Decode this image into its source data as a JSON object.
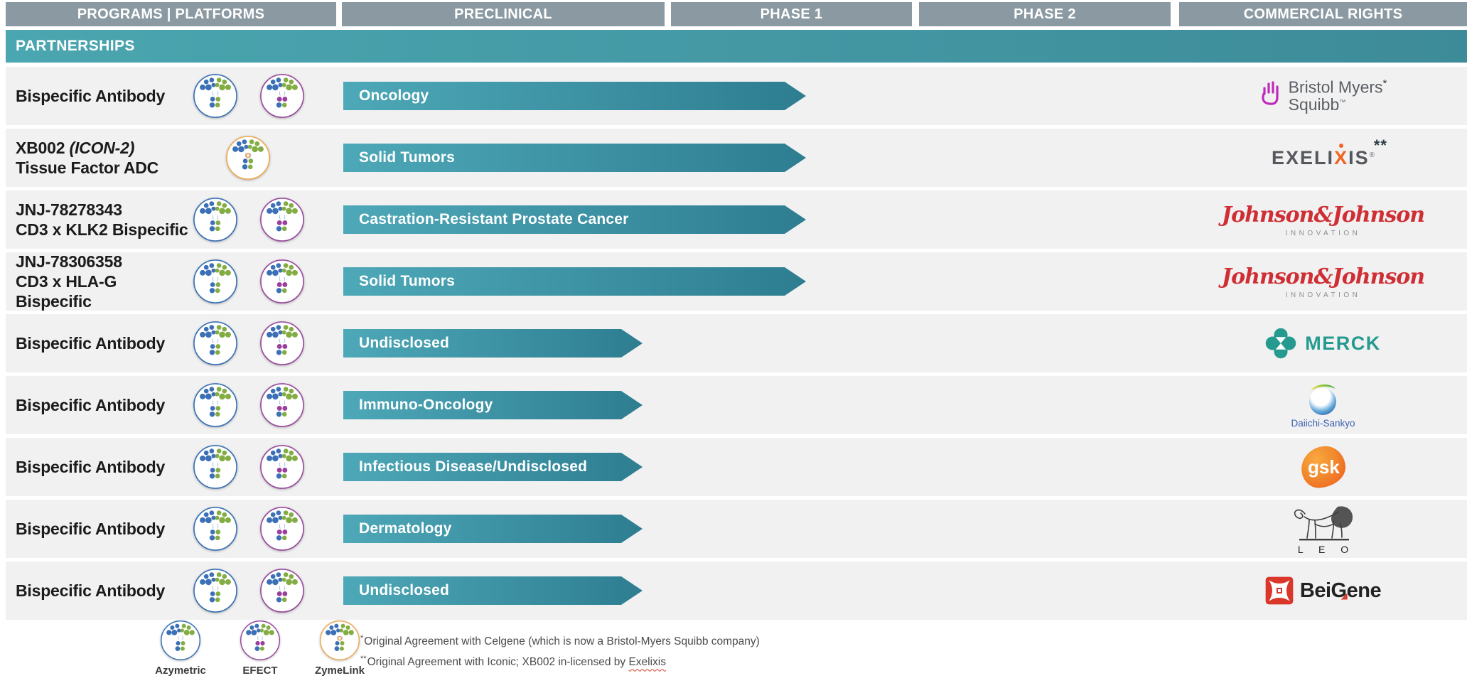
{
  "header": {
    "columns": [
      "PROGRAMS | PLATFORMS",
      "PRECLINICAL",
      "PHASE 1",
      "PHASE 2",
      "COMMERCIAL RIGHTS"
    ]
  },
  "section": {
    "title": "PARTNERSHIPS"
  },
  "rows": [
    {
      "line1": "Bispecific Antibody",
      "platforms": [
        "azymetric",
        "efect"
      ],
      "indication": "Oncology",
      "stage": "phase1",
      "partner": "bms"
    },
    {
      "line1": "XB002 ",
      "line1_italic": "(ICON-2)",
      "line2": "Tissue Factor ADC",
      "platforms": [
        "zymelink"
      ],
      "indication": "Solid Tumors",
      "stage": "phase1",
      "partner": "exelixis"
    },
    {
      "line1": "JNJ-78278343",
      "line2": "CD3 x KLK2 Bispecific",
      "platforms": [
        "azymetric",
        "efect"
      ],
      "indication": "Castration-Resistant Prostate Cancer",
      "stage": "phase1",
      "partner": "jnj"
    },
    {
      "line1": "JNJ-78306358",
      "line2": "CD3 x HLA-G Bispecific",
      "platforms": [
        "azymetric",
        "efect"
      ],
      "indication": "Solid Tumors",
      "stage": "phase1",
      "partner": "jnj"
    },
    {
      "line1": "Bispecific Antibody",
      "platforms": [
        "azymetric",
        "efect"
      ],
      "indication": "Undisclosed",
      "stage": "preclinical",
      "partner": "merck"
    },
    {
      "line1": "Bispecific Antibody",
      "platforms": [
        "azymetric",
        "efect"
      ],
      "indication": "Immuno-Oncology",
      "stage": "preclinical",
      "partner": "daiichi"
    },
    {
      "line1": "Bispecific Antibody",
      "platforms": [
        "azymetric",
        "efect"
      ],
      "indication": "Infectious Disease/Undisclosed",
      "stage": "preclinical",
      "partner": "gsk"
    },
    {
      "line1": "Bispecific Antibody",
      "platforms": [
        "azymetric",
        "efect"
      ],
      "indication": "Dermatology",
      "stage": "preclinical",
      "partner": "leo"
    },
    {
      "line1": "Bispecific Antibody",
      "platforms": [
        "azymetric",
        "efect"
      ],
      "indication": "Undisclosed",
      "stage": "preclinical",
      "partner": "beigene"
    }
  ],
  "logos": {
    "bms": {
      "line1": "Bristol Myers",
      "line2": "Squibb",
      "tm": "™",
      "marker": "*"
    },
    "exelixis": {
      "pre": "EXELI",
      "x": "X",
      "post": "IS",
      "reg": "®",
      "marker": "**"
    },
    "jnj": {
      "name": "Johnson&Johnson",
      "sub": "INNOVATION"
    },
    "merck": {
      "text": "MERCK"
    },
    "daiichi": {
      "text": "Daiichi-Sankyo"
    },
    "gsk": {
      "text": "gsk"
    },
    "leo": {
      "text": "L E O"
    },
    "beigene": {
      "pre": "Bei",
      "g": "G",
      "post": "ene"
    }
  },
  "legend": [
    {
      "id": "azymetric",
      "label": "Azymetric"
    },
    {
      "id": "efect",
      "label": "EFECT"
    },
    {
      "id": "zymelink",
      "label": "ZymeLink"
    }
  ],
  "footnotes": [
    {
      "marker": "*",
      "text": "Original Agreement with Celgene (which is now a Bristol-Myers Squibb company)"
    },
    {
      "marker": "**",
      "pre": "Original Agreement with Iconic; XB002 in-licensed by ",
      "wavy": "Exelixis"
    }
  ],
  "colors": {
    "header_bg": "#8b9aa2",
    "banner_from": "#4aa6b0",
    "banner_to": "#3d8b99",
    "arrow_from": "#4da8b7",
    "arrow_to": "#2e7d91",
    "row_bg": "#f1f1f2",
    "dot_blue": "#3b6fb6",
    "dot_green": "#83ad43",
    "dot_purple": "#9b3f9e",
    "ring_orange": "#e99c4d",
    "azymetric_border": "#3a72b5",
    "efect_border": "#9a4d9e",
    "zymelink_border": "#edab55",
    "bms_purple": "#be2bba",
    "bms_text": "#5b5f63",
    "exelixis_text": "#55575c",
    "exelixis_orange": "#f26322",
    "jnj_red": "#cf2f34",
    "jnj_sub": "#8a8f94",
    "merck_teal": "#259a8e",
    "daiichi_blue": "#3a5fad",
    "gsk_orange": "#ef6c23",
    "leo_dark": "#3d3d3d",
    "beigene_red": "#da362a",
    "beigene_text": "#222222",
    "footnote_text": "#4b4b4b",
    "wavy_red": "#e0412f",
    "program_text": "#1b1b1b",
    "legend_label": "#3c3c3c"
  }
}
